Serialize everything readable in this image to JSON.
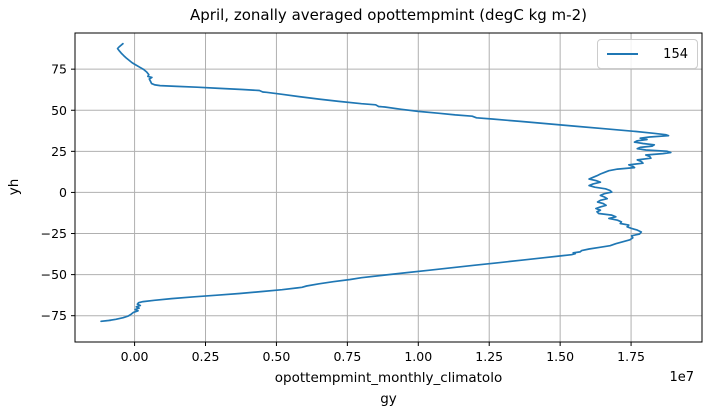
{
  "title": "April, zonally averaged opottempmint (degC kg m-2)",
  "legend": {
    "entries": [
      {
        "label": "154",
        "color": "#1f77b4"
      }
    ],
    "position": "upper right"
  },
  "axes": {
    "ylabel": "yh",
    "xlabel_line1": "opottempmint_monthly_climatolo",
    "xlabel_line2": "gy",
    "offset_text": "1e7",
    "x_tick_labels": [
      "0.00",
      "0.25",
      "0.50",
      "0.75",
      "1.00",
      "1.25",
      "1.50",
      "1.75"
    ],
    "x_tick_values": [
      0,
      0.25,
      0.5,
      0.75,
      1.0,
      1.25,
      1.5,
      1.75
    ],
    "y_tick_labels": [
      "75",
      "50",
      "25",
      "0",
      "−25",
      "−50",
      "−75"
    ],
    "y_tick_values": [
      75,
      50,
      25,
      0,
      -25,
      -50,
      -75
    ]
  },
  "colors": {
    "line": "#1f77b4",
    "grid": "#b0b0b0",
    "spine": "#000000",
    "legend_border": "#cccccc",
    "background": "#ffffff"
  },
  "chart_data": {
    "type": "line",
    "title": "April, zonally averaged opottempmint (degC kg m-2)",
    "xlabel": "opottempmint_monthly_climatology",
    "ylabel": "yh",
    "x_units_multiplier": 10000000.0,
    "xlim": [
      -0.21,
      2.0
    ],
    "ylim": [
      -91,
      97
    ],
    "grid": true,
    "legend_position": "upper right",
    "series": [
      {
        "name": "154",
        "color": "#1f77b4",
        "note": "x values in units of 1e7 degC kg m-2, y = yh (latitude), ordered north to south",
        "points": [
          [
            -0.041,
            90.5
          ],
          [
            -0.055,
            88.5
          ],
          [
            -0.06,
            87.5
          ],
          [
            -0.053,
            86.0
          ],
          [
            -0.047,
            84.8
          ],
          [
            -0.038,
            83.2
          ],
          [
            -0.029,
            81.7
          ],
          [
            -0.018,
            80.2
          ],
          [
            -0.008,
            78.8
          ],
          [
            0.004,
            77.6
          ],
          [
            0.018,
            76.2
          ],
          [
            0.032,
            74.8
          ],
          [
            0.043,
            73.2
          ],
          [
            0.05,
            71.6
          ],
          [
            0.047,
            70.6
          ],
          [
            0.061,
            70.0
          ],
          [
            0.052,
            69.0
          ],
          [
            0.056,
            67.6
          ],
          [
            0.06,
            66.2
          ],
          [
            0.072,
            65.4
          ],
          [
            0.09,
            65.0
          ],
          [
            0.15,
            64.5
          ],
          [
            0.22,
            64.0
          ],
          [
            0.3,
            63.3
          ],
          [
            0.38,
            62.6
          ],
          [
            0.44,
            62.0
          ],
          [
            0.452,
            61.1
          ],
          [
            0.465,
            60.9
          ],
          [
            0.52,
            59.7
          ],
          [
            0.58,
            58.3
          ],
          [
            0.65,
            56.8
          ],
          [
            0.72,
            55.4
          ],
          [
            0.8,
            54.0
          ],
          [
            0.85,
            53.3
          ],
          [
            0.86,
            52.3
          ],
          [
            0.882,
            52.0
          ],
          [
            0.94,
            50.6
          ],
          [
            1.0,
            49.3
          ],
          [
            1.07,
            48.2
          ],
          [
            1.13,
            47.2
          ],
          [
            1.19,
            46.4
          ],
          [
            1.205,
            45.4
          ],
          [
            1.26,
            44.7
          ],
          [
            1.36,
            43.2
          ],
          [
            1.46,
            41.7
          ],
          [
            1.56,
            40.2
          ],
          [
            1.66,
            38.7
          ],
          [
            1.76,
            37.2
          ],
          [
            1.83,
            36.0
          ],
          [
            1.872,
            35.1
          ],
          [
            1.882,
            34.5
          ],
          [
            1.815,
            33.7
          ],
          [
            1.782,
            33.0
          ],
          [
            1.806,
            32.2
          ],
          [
            1.772,
            31.4
          ],
          [
            1.762,
            30.6
          ],
          [
            1.792,
            29.8
          ],
          [
            1.832,
            29.0
          ],
          [
            1.824,
            28.2
          ],
          [
            1.782,
            27.4
          ],
          [
            1.772,
            26.6
          ],
          [
            1.802,
            25.8
          ],
          [
            1.876,
            25.1
          ],
          [
            1.89,
            24.3
          ],
          [
            1.862,
            23.6
          ],
          [
            1.802,
            22.8
          ],
          [
            1.816,
            21.8
          ],
          [
            1.82,
            20.8
          ],
          [
            1.772,
            19.8
          ],
          [
            1.786,
            18.8
          ],
          [
            1.792,
            17.8
          ],
          [
            1.742,
            16.8
          ],
          [
            1.756,
            15.9
          ],
          [
            1.762,
            15.1
          ],
          [
            1.702,
            14.2
          ],
          [
            1.672,
            13.2
          ],
          [
            1.656,
            12.2
          ],
          [
            1.642,
            11.2
          ],
          [
            1.63,
            10.2
          ],
          [
            1.616,
            9.2
          ],
          [
            1.602,
            8.2
          ],
          [
            1.626,
            7.2
          ],
          [
            1.642,
            6.2
          ],
          [
            1.616,
            5.2
          ],
          [
            1.602,
            4.2
          ],
          [
            1.622,
            3.2
          ],
          [
            1.66,
            2.2
          ],
          [
            1.676,
            1.2
          ],
          [
            1.682,
            0.2
          ],
          [
            1.656,
            -0.8
          ],
          [
            1.642,
            -1.8
          ],
          [
            1.656,
            -2.8
          ],
          [
            1.666,
            -3.8
          ],
          [
            1.642,
            -4.8
          ],
          [
            1.632,
            -5.8
          ],
          [
            1.652,
            -6.8
          ],
          [
            1.662,
            -7.8
          ],
          [
            1.642,
            -8.8
          ],
          [
            1.626,
            -9.8
          ],
          [
            1.642,
            -10.8
          ],
          [
            1.63,
            -11.8
          ],
          [
            1.636,
            -12.8
          ],
          [
            1.682,
            -13.8
          ],
          [
            1.696,
            -14.8
          ],
          [
            1.672,
            -15.8
          ],
          [
            1.702,
            -16.9
          ],
          [
            1.716,
            -17.9
          ],
          [
            1.712,
            -18.9
          ],
          [
            1.742,
            -19.9
          ],
          [
            1.736,
            -20.9
          ],
          [
            1.752,
            -21.9
          ],
          [
            1.772,
            -22.9
          ],
          [
            1.786,
            -24.1
          ],
          [
            1.78,
            -25.3
          ],
          [
            1.752,
            -26.4
          ],
          [
            1.756,
            -27.6
          ],
          [
            1.746,
            -28.8
          ],
          [
            1.722,
            -30.0
          ],
          [
            1.696,
            -31.2
          ],
          [
            1.676,
            -32.4
          ],
          [
            1.64,
            -33.4
          ],
          [
            1.602,
            -34.4
          ],
          [
            1.576,
            -35.4
          ],
          [
            1.57,
            -36.2
          ],
          [
            1.546,
            -36.8
          ],
          [
            1.553,
            -37.3
          ],
          [
            1.54,
            -37.9
          ],
          [
            1.502,
            -38.6
          ],
          [
            1.44,
            -39.8
          ],
          [
            1.36,
            -41.3
          ],
          [
            1.28,
            -42.8
          ],
          [
            1.2,
            -44.3
          ],
          [
            1.12,
            -45.8
          ],
          [
            1.04,
            -47.3
          ],
          [
            0.96,
            -48.8
          ],
          [
            0.88,
            -50.3
          ],
          [
            0.8,
            -51.9
          ],
          [
            0.76,
            -53.0
          ],
          [
            0.7,
            -54.3
          ],
          [
            0.65,
            -55.6
          ],
          [
            0.606,
            -56.9
          ],
          [
            0.59,
            -57.7
          ],
          [
            0.574,
            -58.1
          ],
          [
            0.52,
            -59.2
          ],
          [
            0.45,
            -60.3
          ],
          [
            0.37,
            -61.5
          ],
          [
            0.29,
            -62.5
          ],
          [
            0.21,
            -63.5
          ],
          [
            0.13,
            -64.6
          ],
          [
            0.07,
            -65.6
          ],
          [
            0.03,
            -66.4
          ],
          [
            0.014,
            -67.1
          ],
          [
            0.01,
            -68.0
          ],
          [
            0.02,
            -68.8
          ],
          [
            0.006,
            -69.6
          ],
          [
            0.016,
            -70.4
          ],
          [
            0.002,
            -71.2
          ],
          [
            0.012,
            -72.0
          ],
          [
            -0.004,
            -73.0
          ],
          [
            -0.012,
            -74.1
          ],
          [
            -0.022,
            -75.2
          ],
          [
            -0.04,
            -76.2
          ],
          [
            -0.066,
            -77.2
          ],
          [
            -0.092,
            -77.9
          ],
          [
            -0.118,
            -78.4
          ],
          [
            -0.1,
            -78.1
          ],
          [
            -0.084,
            -77.8
          ]
        ]
      }
    ]
  }
}
